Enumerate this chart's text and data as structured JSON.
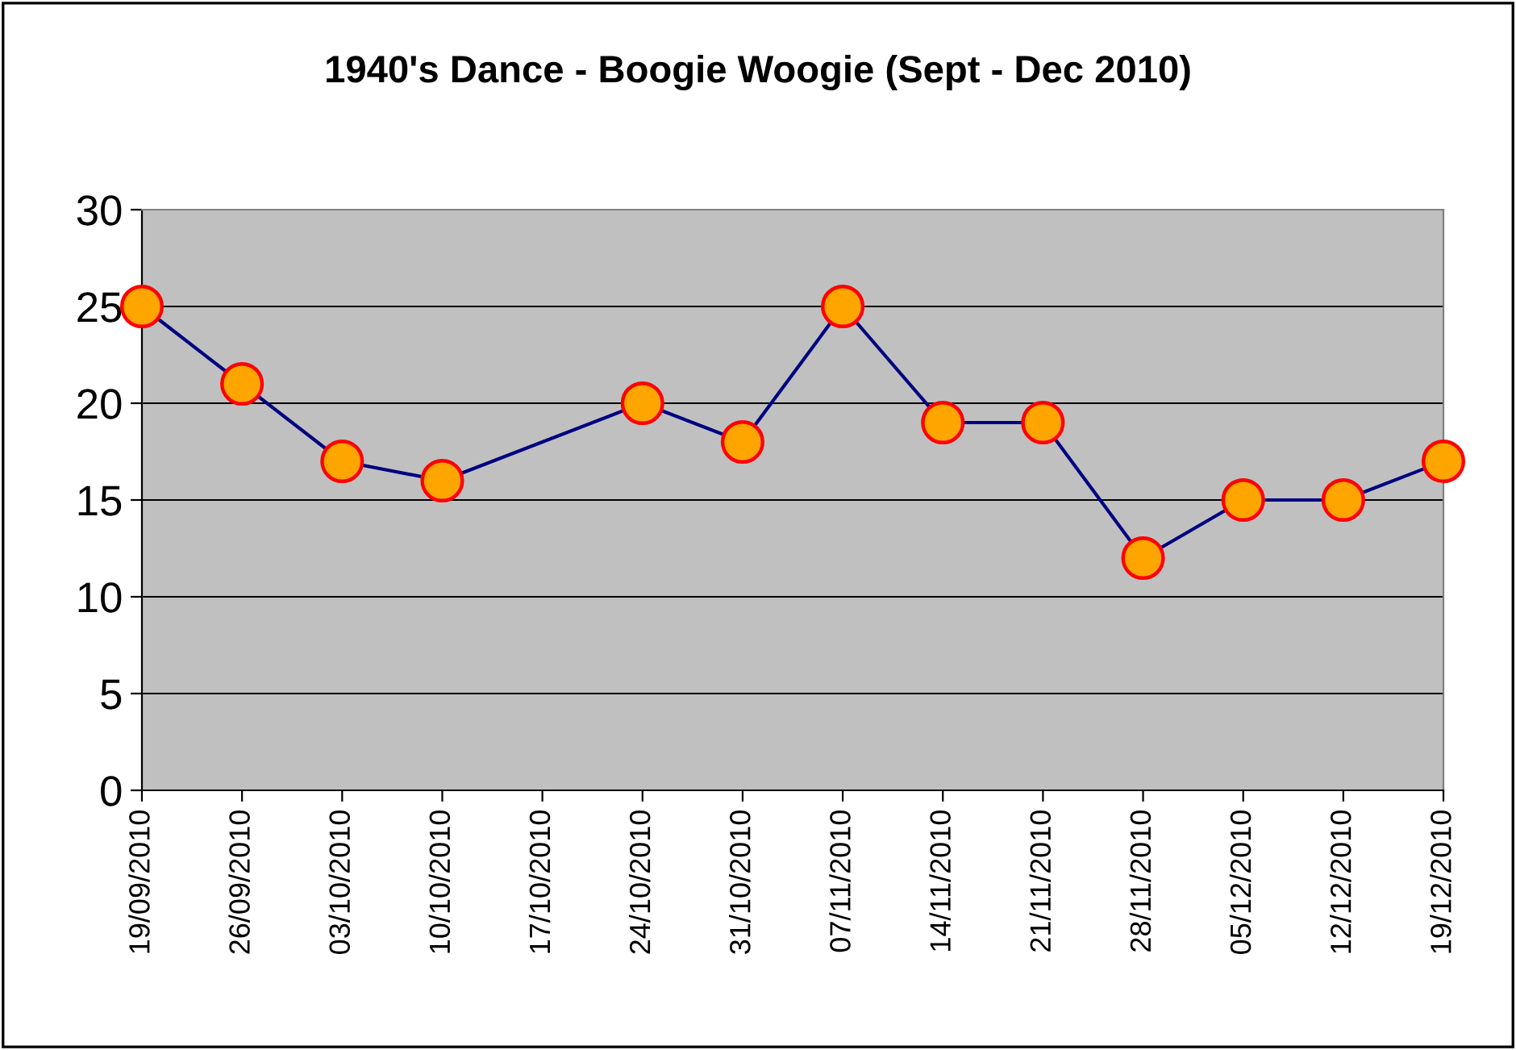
{
  "chart_data": {
    "type": "line",
    "title": "1940's Dance - Boogie Woogie (Sept - Dec 2010)",
    "categories": [
      "19/09/2010",
      "26/09/2010",
      "03/10/2010",
      "10/10/2010",
      "17/10/2010",
      "24/10/2010",
      "31/10/2010",
      "07/11/2010",
      "14/11/2010",
      "21/11/2010",
      "28/11/2010",
      "05/12/2010",
      "12/12/2010",
      "19/12/2010"
    ],
    "series": [
      {
        "color": "#000080",
        "values": [
          25,
          21,
          17,
          16,
          null,
          20,
          18,
          25,
          19,
          19,
          12,
          15,
          15,
          17
        ]
      }
    ],
    "ylim": [
      0,
      30
    ],
    "yticks": [
      0,
      5,
      10,
      15,
      20,
      25,
      30
    ],
    "grid": "y",
    "marker": "circle",
    "line_style": "solid",
    "legend": false
  }
}
